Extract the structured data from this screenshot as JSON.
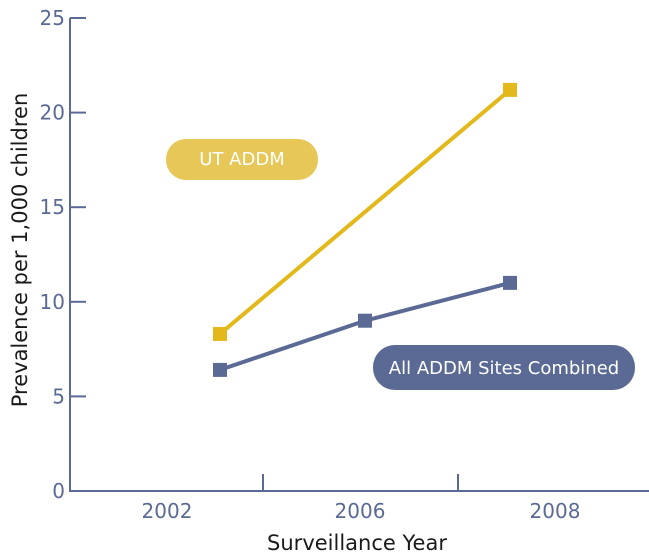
{
  "chart_data": {
    "type": "line",
    "title": "",
    "xlabel": "Surveillance Year",
    "ylabel": "Prevalence per 1,000 children",
    "ylim": [
      0,
      25
    ],
    "yticks": [
      0,
      5,
      10,
      15,
      20,
      25
    ],
    "xticks": [
      "2002",
      "2006",
      "2008"
    ],
    "grid": false,
    "series": [
      {
        "name": "UT ADDM",
        "color": "#e3b81a",
        "label_color": "#e7c758",
        "points": [
          {
            "x": "2002",
            "y": 8.3
          },
          {
            "x": "2008",
            "y": 21.2
          }
        ]
      },
      {
        "name": "All ADDM Sites Combined",
        "color": "#5b6a95",
        "label_color": "#5b6a95",
        "points": [
          {
            "x": "2002",
            "y": 6.4
          },
          {
            "x": "2006",
            "y": 9.0
          },
          {
            "x": "2008",
            "y": 11.0
          }
        ]
      }
    ]
  }
}
